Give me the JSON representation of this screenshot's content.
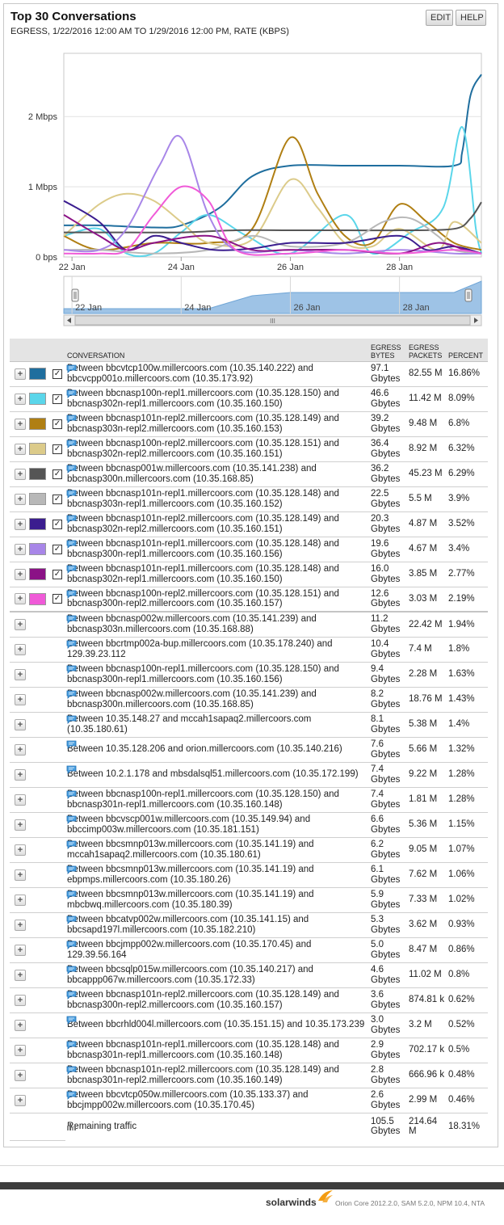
{
  "header": {
    "title": "Top 30 Conversations",
    "subtitle": "EGRESS, 1/22/2016 12:00 AM TO 1/29/2016 12:00 PM, RATE (KBPS)",
    "edit_label": "EDIT",
    "help_label": "HELP"
  },
  "chart_data": {
    "type": "line",
    "y_ticks": [
      "2 Mbps",
      "1 Mbps",
      "0 bps"
    ],
    "x_ticks": [
      "22 Jan",
      "24 Jan",
      "26 Jan",
      "28 Jan"
    ],
    "ylim_mbps": [
      0,
      2.9
    ],
    "xlim_days": [
      21.85,
      29.5
    ],
    "series": [
      {
        "color": "#1f6e9e",
        "points": [
          [
            21.85,
            0.45
          ],
          [
            22.5,
            0.45
          ],
          [
            23.5,
            0.42
          ],
          [
            24,
            0.45
          ],
          [
            24.7,
            0.7
          ],
          [
            25.3,
            1.15
          ],
          [
            26,
            1.3
          ],
          [
            27,
            1.3
          ],
          [
            28,
            1.3
          ],
          [
            29.0,
            1.3
          ],
          [
            29.15,
            1.5
          ],
          [
            29.3,
            2.3
          ],
          [
            29.5,
            2.6
          ]
        ]
      },
      {
        "color": "#5bd6ea",
        "points": [
          [
            21.85,
            0.3
          ],
          [
            22.5,
            0.4
          ],
          [
            23.0,
            0.05
          ],
          [
            23.5,
            0.05
          ],
          [
            24.0,
            0.35
          ],
          [
            24.5,
            0.6
          ],
          [
            25.2,
            0.3
          ],
          [
            26.0,
            0.05
          ],
          [
            27,
            0.6
          ],
          [
            27.5,
            0.05
          ],
          [
            28.2,
            0.35
          ],
          [
            28.8,
            0.7
          ],
          [
            29.15,
            1.85
          ],
          [
            29.4,
            0.4
          ],
          [
            29.5,
            0.05
          ]
        ]
      },
      {
        "color": "#b07f13",
        "points": [
          [
            21.85,
            0.3
          ],
          [
            22.5,
            0.1
          ],
          [
            23.5,
            0.2
          ],
          [
            24.5,
            0.2
          ],
          [
            25.3,
            0.4
          ],
          [
            26.0,
            1.7
          ],
          [
            26.5,
            0.9
          ],
          [
            27,
            0.3
          ],
          [
            27.5,
            0.2
          ],
          [
            28.0,
            0.75
          ],
          [
            28.5,
            0.5
          ],
          [
            29.0,
            0.2
          ],
          [
            29.5,
            0.1
          ]
        ]
      },
      {
        "color": "#dccb8a",
        "points": [
          [
            21.85,
            0.3
          ],
          [
            22.5,
            0.75
          ],
          [
            23.0,
            0.9
          ],
          [
            23.5,
            0.8
          ],
          [
            24.0,
            0.5
          ],
          [
            24.5,
            0.2
          ],
          [
            25.3,
            0.25
          ],
          [
            26.0,
            1.1
          ],
          [
            26.5,
            0.7
          ],
          [
            27,
            0.2
          ],
          [
            27.5,
            0.15
          ],
          [
            28.0,
            0.4
          ],
          [
            28.7,
            0.1
          ],
          [
            29.0,
            0.5
          ],
          [
            29.5,
            0.2
          ]
        ]
      },
      {
        "color": "#555555",
        "points": [
          [
            21.85,
            0.35
          ],
          [
            23,
            0.35
          ],
          [
            24,
            0.35
          ],
          [
            25,
            0.38
          ],
          [
            26,
            0.38
          ],
          [
            27,
            0.38
          ],
          [
            28,
            0.38
          ],
          [
            29,
            0.4
          ],
          [
            29.3,
            0.55
          ],
          [
            29.5,
            0.78
          ]
        ]
      },
      {
        "color": "#b8b8b8",
        "points": [
          [
            21.85,
            0.1
          ],
          [
            22.5,
            0.1
          ],
          [
            23.5,
            0.05
          ],
          [
            24.5,
            0.1
          ],
          [
            25.3,
            0.3
          ],
          [
            26,
            0.15
          ],
          [
            27,
            0.2
          ],
          [
            27.7,
            0.5
          ],
          [
            28.2,
            0.55
          ],
          [
            28.7,
            0.3
          ],
          [
            29.0,
            0.1
          ],
          [
            29.5,
            0.05
          ]
        ]
      },
      {
        "color": "#3b1d8f",
        "points": [
          [
            21.85,
            0.8
          ],
          [
            22.5,
            0.5
          ],
          [
            23.0,
            0.1
          ],
          [
            23.5,
            0.3
          ],
          [
            24.0,
            0.2
          ],
          [
            24.6,
            0.1
          ],
          [
            25.3,
            0.12
          ],
          [
            26,
            0.2
          ],
          [
            27,
            0.2
          ],
          [
            28,
            0.3
          ],
          [
            28.5,
            0.1
          ],
          [
            29.0,
            0.15
          ],
          [
            29.5,
            0.05
          ]
        ]
      },
      {
        "color": "#a886e8",
        "points": [
          [
            21.85,
            0.1
          ],
          [
            22.5,
            0.1
          ],
          [
            23.0,
            0.4
          ],
          [
            23.6,
            1.3
          ],
          [
            24.0,
            1.7
          ],
          [
            24.5,
            0.6
          ],
          [
            25.0,
            0.1
          ],
          [
            26,
            0.1
          ],
          [
            27,
            0.05
          ],
          [
            28,
            0.1
          ],
          [
            29,
            0.05
          ],
          [
            29.5,
            0.05
          ]
        ]
      },
      {
        "color": "#8b1286",
        "points": [
          [
            21.85,
            0.6
          ],
          [
            22.5,
            0.3
          ],
          [
            23.0,
            0.1
          ],
          [
            23.5,
            0.2
          ],
          [
            24.5,
            0.3
          ],
          [
            25.3,
            0.1
          ],
          [
            26,
            0.1
          ],
          [
            27,
            0.1
          ],
          [
            28,
            0.05
          ],
          [
            28.7,
            0.2
          ],
          [
            29.2,
            0.1
          ],
          [
            29.5,
            0.05
          ]
        ]
      },
      {
        "color": "#f05ad8",
        "points": [
          [
            21.85,
            0.05
          ],
          [
            22.5,
            0.05
          ],
          [
            23.0,
            0.1
          ],
          [
            23.5,
            0.6
          ],
          [
            24.0,
            1.0
          ],
          [
            24.5,
            0.8
          ],
          [
            25.0,
            0.1
          ],
          [
            26,
            0.05
          ],
          [
            27,
            0.1
          ],
          [
            28,
            0.05
          ],
          [
            29,
            0.1
          ],
          [
            29.5,
            0.05
          ]
        ]
      }
    ],
    "navigator": {
      "x_ticks": [
        "22 Jan",
        "24 Jan",
        "26 Jan",
        "28 Jan"
      ],
      "scroll_label": "III"
    }
  },
  "table": {
    "headers": {
      "conversation": "CONVERSATION",
      "bytes": "EGRESS BYTES",
      "packets": "EGRESS PACKETS",
      "percent": "PERCENT"
    },
    "rows": [
      {
        "color": "#1f6e9e",
        "checked": true,
        "conv": "Between bbcvtcp100w.millercoors.com (10.35.140.222) and bbcvcpp001o.millercoors.com (10.35.173.92)",
        "bytes": "97.1 Gbytes",
        "packets": "82.55 M",
        "percent": "16.86%"
      },
      {
        "color": "#5bd6ea",
        "checked": true,
        "conv": "Between bbcnasp100n-repl1.millercoors.com (10.35.128.150) and bbcnasp302n-repl1.millercoors.com (10.35.160.150)",
        "bytes": "46.6 Gbytes",
        "packets": "11.42 M",
        "percent": "8.09%"
      },
      {
        "color": "#b07f13",
        "checked": true,
        "conv": "Between bbcnasp101n-repl2.millercoors.com (10.35.128.149) and bbcnasp303n-repl2.millercoors.com (10.35.160.153)",
        "bytes": "39.2 Gbytes",
        "packets": "9.48 M",
        "percent": "6.8%"
      },
      {
        "color": "#dccb8a",
        "checked": true,
        "conv": "Between bbcnasp100n-repl2.millercoors.com (10.35.128.151) and bbcnasp302n-repl2.millercoors.com (10.35.160.151)",
        "bytes": "36.4 Gbytes",
        "packets": "8.92 M",
        "percent": "6.32%"
      },
      {
        "color": "#555555",
        "checked": true,
        "conv": "Between bbcnasp001w.millercoors.com (10.35.141.238) and bbcnasp300n.millercoors.com (10.35.168.85)",
        "bytes": "36.2 Gbytes",
        "packets": "45.23 M",
        "percent": "6.29%"
      },
      {
        "color": "#b8b8b8",
        "checked": true,
        "conv": "Between bbcnasp101n-repl1.millercoors.com (10.35.128.148) and bbcnasp303n-repl1.millercoors.com (10.35.160.152)",
        "bytes": "22.5 Gbytes",
        "packets": "5.5 M",
        "percent": "3.9%"
      },
      {
        "color": "#3b1d8f",
        "checked": true,
        "conv": "Between bbcnasp101n-repl2.millercoors.com (10.35.128.149) and bbcnasp302n-repl2.millercoors.com (10.35.160.151)",
        "bytes": "20.3 Gbytes",
        "packets": "4.87 M",
        "percent": "3.52%"
      },
      {
        "color": "#a886e8",
        "checked": true,
        "conv": "Between bbcnasp101n-repl1.millercoors.com (10.35.128.148) and bbcnasp300n-repl1.millercoors.com (10.35.160.156)",
        "bytes": "19.6 Gbytes",
        "packets": "4.67 M",
        "percent": "3.4%"
      },
      {
        "color": "#8b1286",
        "checked": true,
        "conv": "Between bbcnasp101n-repl1.millercoors.com (10.35.128.148) and bbcnasp302n-repl1.millercoors.com (10.35.160.150)",
        "bytes": "16.0 Gbytes",
        "packets": "3.85 M",
        "percent": "2.77%"
      },
      {
        "color": "#f05ad8",
        "checked": true,
        "conv": "Between bbcnasp100n-repl2.millercoors.com (10.35.128.151) and bbcnasp300n-repl2.millercoors.com (10.35.160.157)",
        "bytes": "12.6 Gbytes",
        "packets": "3.03 M",
        "percent": "2.19%"
      },
      {
        "conv": "Between bbcnasp002w.millercoors.com (10.35.141.239) and bbcnasp303n.millercoors.com (10.35.168.88)",
        "bytes": "11.2 Gbytes",
        "packets": "22.42 M",
        "percent": "1.94%"
      },
      {
        "conv": "Between bbcrtmp002a-bup.millercoors.com (10.35.178.240) and 129.39.23.112",
        "bytes": "10.4 Gbytes",
        "packets": "7.4 M",
        "percent": "1.8%"
      },
      {
        "conv": "Between bbcnasp100n-repl1.millercoors.com (10.35.128.150) and bbcnasp300n-repl1.millercoors.com (10.35.160.156)",
        "bytes": "9.4 Gbytes",
        "packets": "2.28 M",
        "percent": "1.63%"
      },
      {
        "conv": "Between bbcnasp002w.millercoors.com (10.35.141.239) and bbcnasp300n.millercoors.com (10.35.168.85)",
        "bytes": "8.2 Gbytes",
        "packets": "18.76 M",
        "percent": "1.43%"
      },
      {
        "conv": "Between 10.35.148.27 and mccah1sapaq2.millercoors.com (10.35.180.61)",
        "bytes": "8.1 Gbytes",
        "packets": "5.38 M",
        "percent": "1.4%"
      },
      {
        "conv": "Between 10.35.128.206 and orion.millercoors.com (10.35.140.216)",
        "bytes": "7.6 Gbytes",
        "packets": "5.66 M",
        "percent": "1.32%"
      },
      {
        "conv": "Between 10.2.1.178 and mbsdalsql51.millercoors.com (10.35.172.199)",
        "bytes": "7.4 Gbytes",
        "packets": "9.22 M",
        "percent": "1.28%"
      },
      {
        "conv": "Between bbcnasp100n-repl1.millercoors.com (10.35.128.150) and bbcnasp301n-repl1.millercoors.com (10.35.160.148)",
        "bytes": "7.4 Gbytes",
        "packets": "1.81 M",
        "percent": "1.28%"
      },
      {
        "conv": "Between bbcvscp001w.millercoors.com (10.35.149.94) and bbccimp003w.millercoors.com (10.35.181.151)",
        "bytes": "6.6 Gbytes",
        "packets": "5.36 M",
        "percent": "1.15%"
      },
      {
        "conv": "Between bbcsmnp013w.millercoors.com (10.35.141.19) and mccah1sapaq2.millercoors.com (10.35.180.61)",
        "bytes": "6.2 Gbytes",
        "packets": "9.05 M",
        "percent": "1.07%"
      },
      {
        "conv": "Between bbcsmnp013w.millercoors.com (10.35.141.19) and ebpmps.millercoors.com (10.35.180.26)",
        "bytes": "6.1 Gbytes",
        "packets": "7.62 M",
        "percent": "1.06%"
      },
      {
        "conv": "Between bbcsmnp013w.millercoors.com (10.35.141.19) and mbcbwq.millercoors.com (10.35.180.39)",
        "bytes": "5.9 Gbytes",
        "packets": "7.33 M",
        "percent": "1.02%"
      },
      {
        "conv": "Between bbcatvp002w.millercoors.com (10.35.141.15) and bbcsapd197l.millercoors.com (10.35.182.210)",
        "bytes": "5.3 Gbytes",
        "packets": "3.62 M",
        "percent": "0.93%"
      },
      {
        "conv": "Between bbcjmpp002w.millercoors.com (10.35.170.45) and 129.39.56.164",
        "bytes": "5.0 Gbytes",
        "packets": "8.47 M",
        "percent": "0.86%"
      },
      {
        "conv": "Between bbcsqlp015w.millercoors.com (10.35.140.217) and bbcappp067w.millercoors.com (10.35.172.33)",
        "bytes": "4.6 Gbytes",
        "packets": "11.02 M",
        "percent": "0.8%"
      },
      {
        "conv": "Between bbcnasp101n-repl2.millercoors.com (10.35.128.149) and bbcnasp300n-repl2.millercoors.com (10.35.160.157)",
        "bytes": "3.6 Gbytes",
        "packets": "874.81 k",
        "percent": "0.62%"
      },
      {
        "conv": "Between bbcrhld004l.millercoors.com (10.35.151.15) and 10.35.173.239",
        "bytes": "3.0 Gbytes",
        "packets": "3.2 M",
        "percent": "0.52%"
      },
      {
        "conv": "Between bbcnasp101n-repl1.millercoors.com (10.35.128.148) and bbcnasp301n-repl1.millercoors.com (10.35.160.148)",
        "bytes": "2.9 Gbytes",
        "packets": "702.17 k",
        "percent": "0.5%"
      },
      {
        "conv": "Between bbcnasp101n-repl2.millercoors.com (10.35.128.149) and bbcnasp301n-repl2.millercoors.com (10.35.160.149)",
        "bytes": "2.8 Gbytes",
        "packets": "666.96 k",
        "percent": "0.48%"
      },
      {
        "conv": "Between bbcvtcp050w.millercoors.com (10.35.133.37) and bbcjmpp002w.millercoors.com (10.35.170.45)",
        "bytes": "2.6 Gbytes",
        "packets": "2.99 M",
        "percent": "0.46%"
      }
    ],
    "remaining": {
      "label": "Remaining traffic",
      "bytes": "105.5 Gbytes",
      "packets": "214.64 M",
      "percent": "18.31%"
    }
  },
  "footer": {
    "brand": "solarwinds",
    "version": "Orion Core 2012.2.0, SAM 5.2.0, NPM 10.4, NTA"
  }
}
